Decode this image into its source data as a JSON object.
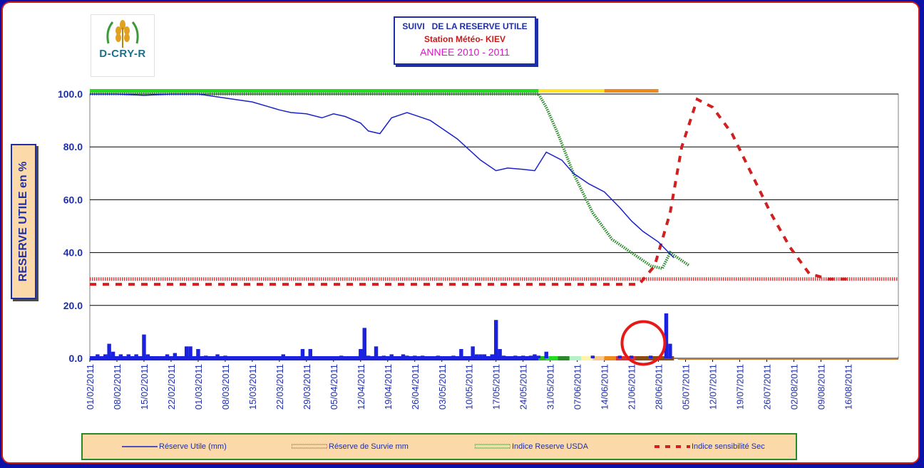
{
  "logo": {
    "text": "D-CRY-R"
  },
  "title": {
    "line1": "SUIVI   DE LA RESERVE UTILE",
    "line2": "Station Météo- KIEV",
    "line3": "ANNEE 2010 - 2011"
  },
  "y_axis_label": "RESERVE UTILE  en %",
  "colors": {
    "reserve_utile": "#1a22c8",
    "reserve_survie": "#d02020",
    "indice_usda": "#2a8a2a",
    "indice_sec": "#d02020",
    "rain_bars": "#1a22e0",
    "highlight_circle": "#e81818"
  },
  "legend": [
    {
      "name": "Réserve Utile (mm)",
      "style": "line"
    },
    {
      "name": "Réserve de Survie mm",
      "style": "hatched"
    },
    {
      "name": "Indice Reserve USDA",
      "style": "dotted"
    },
    {
      "name": "Indice sensibilité Sec",
      "style": "dashed"
    }
  ],
  "chart_data": {
    "type": "line",
    "ylabel": "RESERVE UTILE  en %",
    "xlabel": "",
    "ylim": [
      0,
      100
    ],
    "xlim": [
      "01/02/2011",
      "18/08/2011"
    ],
    "yticks": [
      "0.0",
      "20.0",
      "40.0",
      "60.0",
      "80.0",
      "100.0"
    ],
    "x_tick_labels": [
      "01/02/2011",
      "08/02/2011",
      "15/02/2011",
      "22/02/2011",
      "01/03/2011",
      "08/03/2011",
      "15/03/2011",
      "22/03/2011",
      "29/03/2011",
      "05/04/2011",
      "12/04/2011",
      "19/04/2011",
      "26/04/2011",
      "03/05/2011",
      "10/05/2011",
      "17/05/2011",
      "24/05/2011",
      "31/05/2011",
      "07/06/2011",
      "14/06/2011",
      "21/06/2011",
      "28/06/2011",
      "05/07/2011",
      "12/07/2011",
      "19/07/2011",
      "26/07/2011",
      "02/08/2011",
      "09/08/2011",
      "16/08/2011"
    ],
    "grid": "horizontal",
    "series": [
      {
        "name": "Réserve Utile (mm)",
        "x": [
          0,
          7,
          14,
          21,
          28,
          35,
          42,
          49,
          52,
          56,
          60,
          63,
          66,
          70,
          72,
          75,
          78,
          82,
          84,
          88,
          91,
          95,
          98,
          101,
          105,
          108,
          112,
          115,
          118,
          122,
          125,
          129,
          133,
          137,
          140,
          143,
          147,
          151
        ],
        "y": [
          100,
          100,
          99.5,
          100,
          100,
          98.5,
          97,
          94,
          93,
          92.5,
          91,
          92.5,
          91.5,
          89,
          86,
          85,
          91,
          93,
          92,
          90,
          87,
          83,
          79,
          75,
          71,
          72,
          71.5,
          71,
          78,
          75,
          70,
          66,
          63,
          57,
          52,
          48,
          44,
          38
        ]
      },
      {
        "name": "Réserve de Survie mm",
        "x": [
          0,
          209
        ],
        "y": [
          30,
          30
        ]
      },
      {
        "name": "Indice Reserve USDA",
        "x": [
          0,
          116,
          118,
          121,
          125,
          130,
          135,
          140,
          145,
          148,
          150,
          153,
          155
        ],
        "y": [
          100,
          100,
          95,
          85,
          70,
          55,
          45,
          40,
          35,
          34,
          40,
          37,
          35
        ]
      },
      {
        "name": "Indice sensibilité Sec",
        "x": [
          0,
          139,
          142,
          146,
          150,
          153,
          157,
          161,
          166,
          171,
          176,
          181,
          186,
          191,
          196
        ],
        "y": [
          28,
          28,
          28,
          35,
          55,
          80,
          98,
          95,
          85,
          70,
          55,
          42,
          32,
          30,
          30
        ]
      }
    ],
    "rainfall": {
      "x": [
        2,
        4,
        5,
        6,
        8,
        10,
        12,
        14,
        15,
        20,
        22,
        25,
        26,
        28,
        30,
        33,
        35,
        50,
        55,
        57,
        65,
        70,
        71,
        72,
        74,
        76,
        78,
        81,
        82,
        84,
        86,
        90,
        94,
        96,
        99,
        100,
        101,
        102,
        104,
        105,
        106,
        107,
        110,
        112,
        114,
        115,
        116,
        118,
        130,
        137,
        140,
        145,
        149,
        150
      ],
      "y": [
        1.5,
        1.5,
        5.5,
        2.5,
        1.5,
        1.5,
        1.5,
        9,
        1.5,
        1.5,
        2,
        4.5,
        4.5,
        3.5,
        1,
        1.5,
        1,
        1.5,
        3.5,
        3.5,
        1,
        3.5,
        11.5,
        1,
        4.5,
        1,
        1.5,
        1.5,
        1,
        1,
        1,
        1,
        1,
        3.5,
        4.5,
        1.5,
        1.5,
        1.5,
        1.5,
        14.5,
        3.5,
        1,
        1,
        1,
        1,
        1.5,
        1,
        2.5,
        1,
        1,
        1,
        1,
        17,
        5.5
      ]
    },
    "bands": {
      "top": [
        {
          "from": 0,
          "to": 116,
          "color": "#22dd22"
        },
        {
          "from": 116,
          "to": 133,
          "color": "#ffe620"
        },
        {
          "from": 133,
          "to": 147,
          "color": "#ee8a1a"
        }
      ],
      "bottom": [
        {
          "from": 116,
          "to": 118,
          "color": "#22bb22"
        },
        {
          "from": 118,
          "to": 121,
          "color": "#22dd22"
        },
        {
          "from": 121,
          "to": 124,
          "color": "#2a8a2a"
        },
        {
          "from": 124,
          "to": 127,
          "color": "#b8f0c8"
        },
        {
          "from": 127,
          "to": 130,
          "color": "#fff3a8"
        },
        {
          "from": 130,
          "to": 133,
          "color": "#f8c888"
        },
        {
          "from": 133,
          "to": 136,
          "color": "#ee8a1a"
        },
        {
          "from": 136,
          "to": 141,
          "color": "#e03030"
        },
        {
          "from": 141,
          "to": 151,
          "color": "#8a4a10"
        }
      ]
    },
    "annotations": [
      {
        "type": "circle",
        "x": 142,
        "y": 5
      }
    ]
  }
}
